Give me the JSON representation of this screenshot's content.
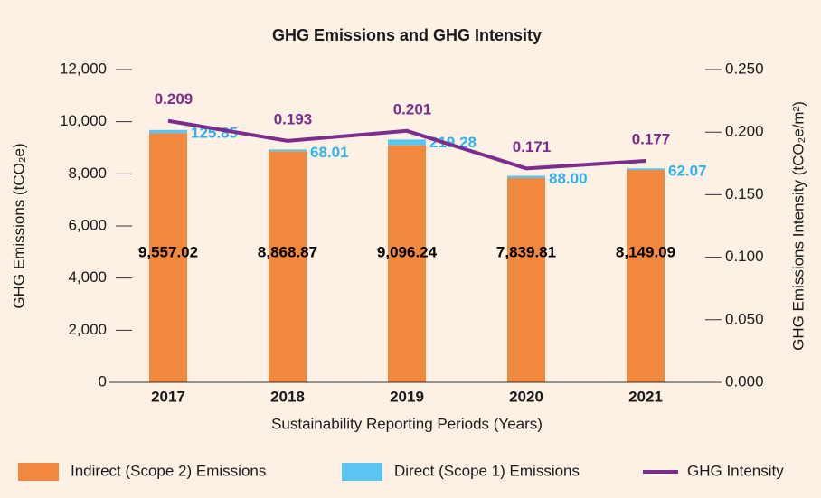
{
  "chart_data": {
    "type": "bar",
    "stacked": true,
    "title": "GHG Emissions and GHG Intensity",
    "x_label": "Sustainability Reporting Periods (Years)",
    "y_label": "GHG Emissions (tCO₂e)",
    "y2_label": "GHG Emissions Intensity (tCO₂e/m²)",
    "categories": [
      "2017",
      "2018",
      "2019",
      "2020",
      "2021"
    ],
    "series": [
      {
        "name": "Indirect (Scope 2) Emissions",
        "color": "#f0883e",
        "values": [
          9557.02,
          8868.87,
          9096.24,
          7839.81,
          8149.09
        ],
        "value_labels": [
          "9,557.02",
          "8,868.87",
          "9,096.24",
          "7,839.81",
          "8,149.09"
        ],
        "label_color": "#000000"
      },
      {
        "name": "Direct (Scope 1) Emissions",
        "color": "#5bc4f0",
        "values": [
          125.85,
          68.01,
          219.28,
          88.0,
          62.07
        ],
        "value_labels": [
          "125.85",
          "68.01",
          "219.28",
          "88.00",
          "62.07"
        ],
        "label_color": "#2fb3ea"
      },
      {
        "name": "GHG Intensity",
        "color": "#7b2d8e",
        "type": "line",
        "axis": "y2",
        "values": [
          0.209,
          0.193,
          0.201,
          0.171,
          0.177
        ],
        "label_color": "#7b2d8e"
      }
    ],
    "ylim": [
      0,
      12000
    ],
    "yticks": [
      0,
      {
        "value": 2000,
        "label": "2,000"
      },
      {
        "value": 4000,
        "label": "4,000"
      },
      {
        "value": 6000,
        "label": "6,000"
      },
      {
        "value": 8000,
        "label": "8,000"
      },
      {
        "value": 10000,
        "label": "10,000"
      },
      {
        "value": 12000,
        "label": "12,000"
      }
    ],
    "y2lim": [
      0,
      0.25
    ],
    "y2ticks": [
      {
        "value": 0,
        "label": "0.000"
      },
      {
        "value": 0.05,
        "label": "0.050"
      },
      {
        "value": 0.1,
        "label": "0.100"
      },
      {
        "value": 0.15,
        "label": "0.150"
      },
      {
        "value": 0.2,
        "label": "0.200"
      },
      {
        "value": 0.25,
        "label": "0.250"
      }
    ],
    "legend": "bottom"
  }
}
